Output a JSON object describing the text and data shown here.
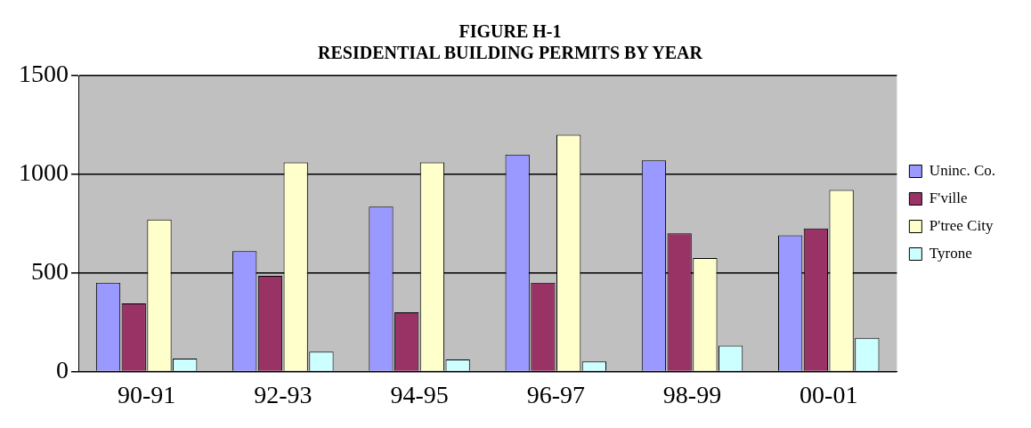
{
  "chart_data": {
    "type": "bar",
    "title": [
      "FIGURE H-1",
      "RESIDENTIAL BUILDING PERMITS BY YEAR"
    ],
    "categories": [
      "90-91",
      "92-93",
      "94-95",
      "96-97",
      "98-99",
      "00-01"
    ],
    "series": [
      {
        "name": "Uninc. Co.",
        "color": "#9999ff",
        "values": [
          450,
          610,
          835,
          1100,
          1070,
          690
        ]
      },
      {
        "name": "F'ville",
        "color": "#993366",
        "values": [
          345,
          485,
          300,
          450,
          700,
          725
        ]
      },
      {
        "name": "P'tree City",
        "color": "#ffffcc",
        "values": [
          770,
          1060,
          1060,
          1200,
          575,
          920
        ]
      },
      {
        "name": "Tyrone",
        "color": "#ccffff",
        "values": [
          65,
          100,
          60,
          50,
          130,
          170
        ]
      }
    ],
    "ylim": [
      0,
      1500
    ],
    "yticks": [
      0,
      500,
      1000,
      1500
    ],
    "grid": "y",
    "legend": "right"
  }
}
